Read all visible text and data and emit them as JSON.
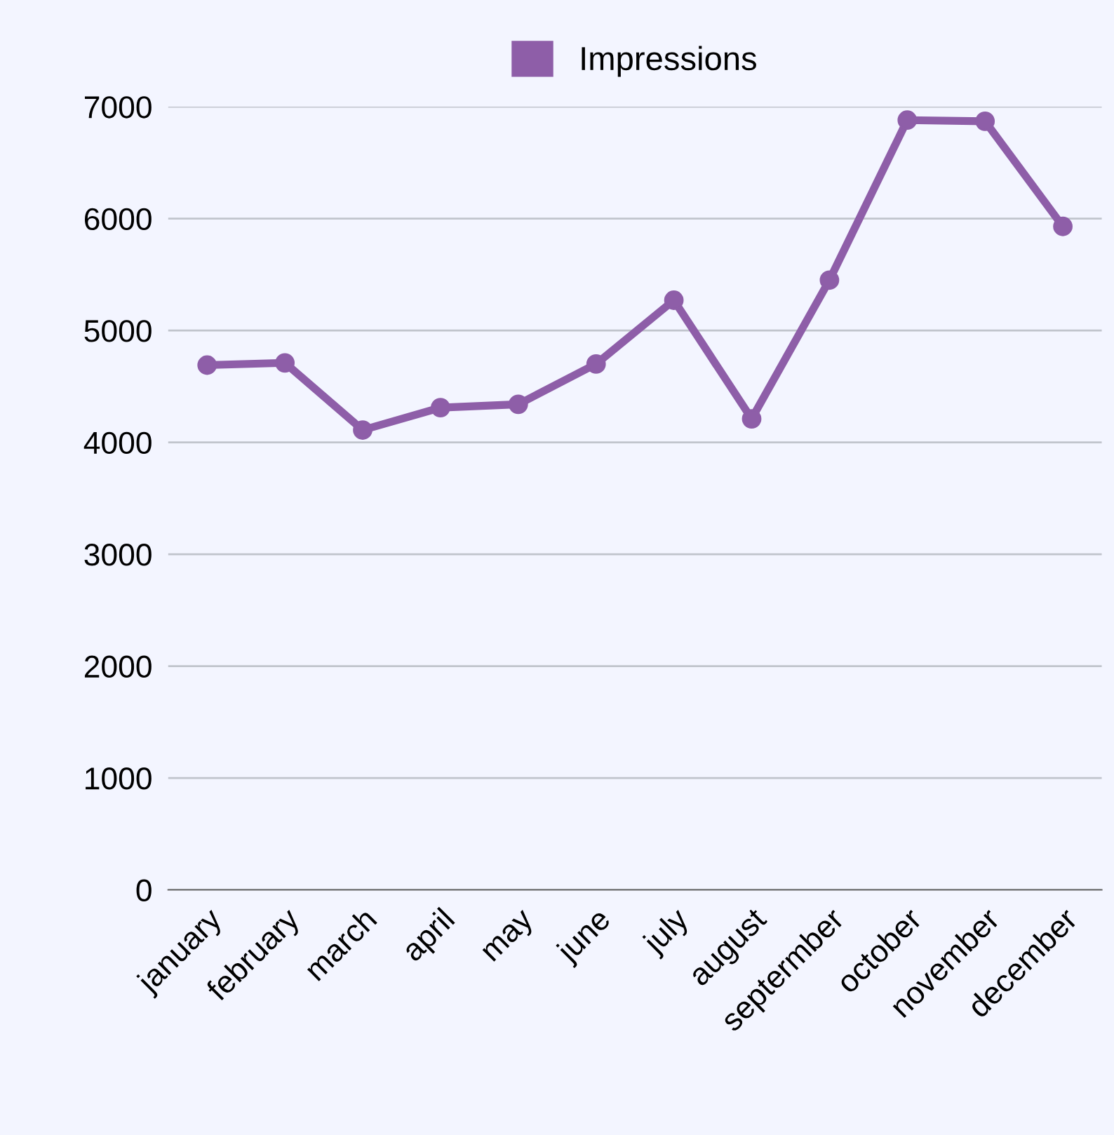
{
  "chart_data": {
    "type": "line",
    "categories": [
      "january",
      "february",
      "march",
      "april",
      "may",
      "june",
      "july",
      "august",
      "septermber",
      "october",
      "november",
      "december"
    ],
    "series": [
      {
        "name": "Impressions",
        "color": "#8e5ea8",
        "values": [
          4690,
          4710,
          4110,
          4310,
          4340,
          4700,
          5270,
          4210,
          5450,
          6880,
          6870,
          5930
        ]
      }
    ],
    "ylim": [
      0,
      7000
    ],
    "yticks": [
      0,
      1000,
      2000,
      3000,
      4000,
      5000,
      6000,
      7000
    ],
    "grid": "y",
    "legend": "top",
    "marker": "circle",
    "line_style": "solid"
  }
}
